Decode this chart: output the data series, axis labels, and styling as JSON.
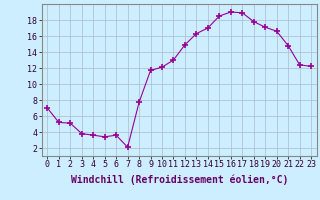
{
  "x": [
    0,
    1,
    2,
    3,
    4,
    5,
    6,
    7,
    8,
    9,
    10,
    11,
    12,
    13,
    14,
    15,
    16,
    17,
    18,
    19,
    20,
    21,
    22,
    23
  ],
  "y": [
    7.0,
    5.2,
    5.1,
    3.8,
    3.6,
    3.4,
    3.6,
    2.1,
    7.7,
    11.7,
    12.1,
    13.0,
    14.9,
    16.3,
    17.0,
    18.5,
    19.0,
    18.9,
    17.8,
    17.1,
    16.6,
    14.8,
    12.4,
    12.2
  ],
  "line_color": "#990099",
  "marker": "+",
  "markersize": 4,
  "markeredgewidth": 1.2,
  "linewidth": 0.8,
  "xlabel": "Windchill (Refroidissement éolien,°C)",
  "xlabel_fontsize": 7,
  "ylabel_ticks": [
    2,
    4,
    6,
    8,
    10,
    12,
    14,
    16,
    18
  ],
  "xtick_labels": [
    "0",
    "1",
    "2",
    "3",
    "4",
    "5",
    "6",
    "7",
    "8",
    "9",
    "10",
    "11",
    "12",
    "13",
    "14",
    "15",
    "16",
    "17",
    "18",
    "19",
    "20",
    "21",
    "22",
    "23"
  ],
  "xlim": [
    -0.5,
    23.5
  ],
  "ylim": [
    1.0,
    20.0
  ],
  "bg_color": "#cceeff",
  "grid_color": "#aabbcc",
  "tick_fontsize": 6,
  "xlabel_color": "#660066"
}
